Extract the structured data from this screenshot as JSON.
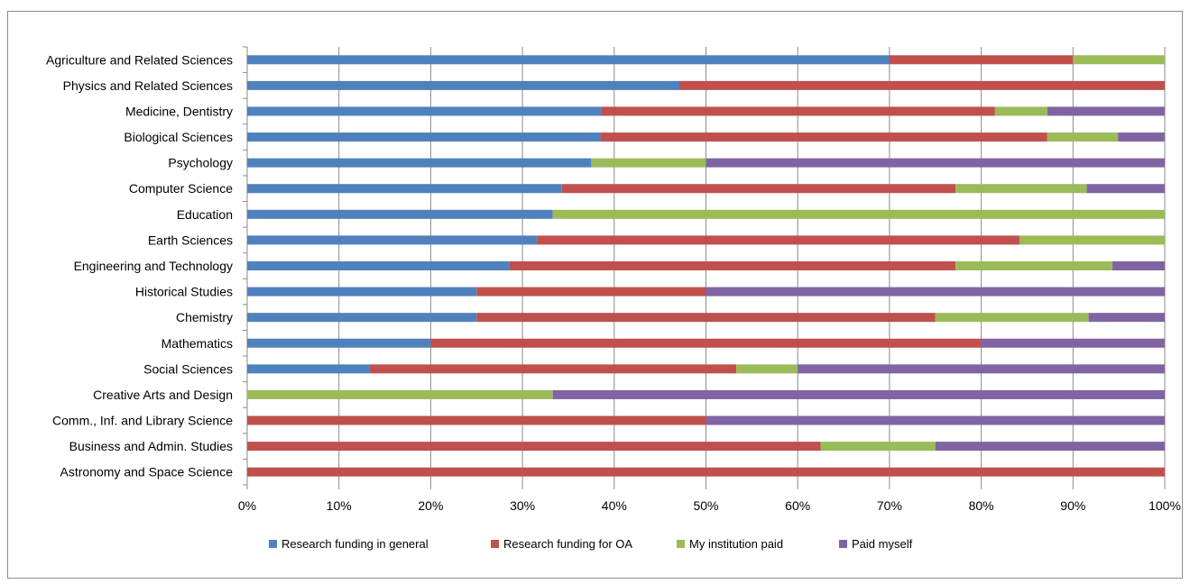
{
  "chart_data": {
    "type": "bar",
    "orientation": "horizontal",
    "stacked": "percent",
    "categories": [
      "Agriculture and Related Sciences",
      "Physics and Related Sciences",
      "Medicine, Dentistry",
      "Biological Sciences",
      "Psychology",
      "Computer Science",
      "Education",
      "Earth Sciences",
      "Engineering and Technology",
      "Historical Studies",
      "Chemistry",
      "Mathematics",
      "Social Sciences",
      "Creative Arts and Design",
      "Comm., Inf. and Library Science",
      "Business and Admin. Studies",
      "Astronomy and Space Science"
    ],
    "series": [
      {
        "name": "Research funding in general",
        "color": "#4F81BD",
        "values": [
          70,
          47.1,
          38.6,
          38.5,
          37.5,
          34.3,
          33.3,
          31.6,
          28.6,
          25,
          25,
          20,
          13.3,
          0,
          0,
          0,
          0
        ]
      },
      {
        "name": "Research funding for OA",
        "color": "#C0504D",
        "values": [
          20,
          52.9,
          42.9,
          48.7,
          0,
          42.9,
          0,
          52.6,
          48.6,
          25,
          50,
          60,
          40,
          0,
          50,
          62.5,
          100
        ]
      },
      {
        "name": "My institution paid",
        "color": "#9BBB59",
        "values": [
          10,
          0,
          5.7,
          7.7,
          12.5,
          14.3,
          66.7,
          15.8,
          17.1,
          0,
          16.7,
          0,
          6.7,
          33.3,
          0,
          12.5,
          0
        ]
      },
      {
        "name": "Paid myself",
        "color": "#8064A2",
        "values": [
          0,
          0,
          12.8,
          5.1,
          50,
          8.5,
          0,
          0,
          5.7,
          50,
          8.3,
          20,
          40,
          66.7,
          50,
          25,
          0
        ]
      }
    ],
    "x_ticks": [
      "0%",
      "10%",
      "20%",
      "30%",
      "40%",
      "50%",
      "60%",
      "70%",
      "80%",
      "90%",
      "100%"
    ],
    "xlim": [
      0,
      100
    ],
    "grid": "vertical",
    "legend_position": "bottom"
  }
}
